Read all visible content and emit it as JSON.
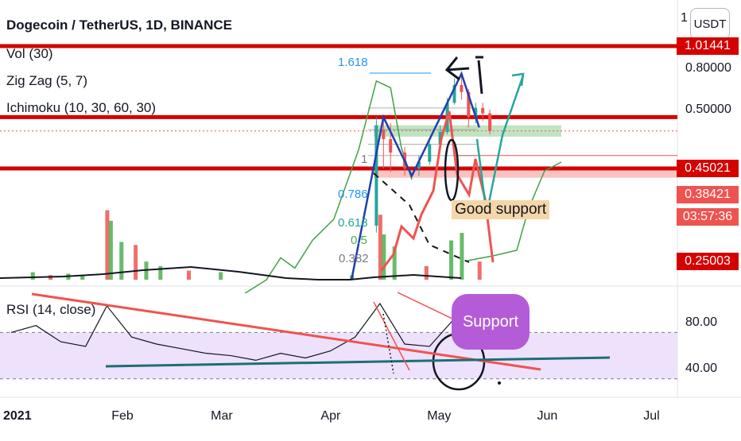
{
  "header": {
    "title": "Dogecoin / TetherUS, 1D, BINANCE",
    "vol_label": "Vol (30)",
    "zigzag_label": "Zig Zag (5, 7)",
    "ichimoku_label": "Ichimoku (10, 30, 60, 30)",
    "rsi_label": "RSI (14, close)",
    "currency": "USDT",
    "axis_top_char": "1"
  },
  "price_tags": {
    "level_top": "1.01441",
    "level_mid": "0.45021",
    "last_price": "0.38421",
    "countdown": "03:57:36",
    "level_low": "0.25003"
  },
  "annotations": {
    "good_support": "Good support",
    "support": "Support",
    "fib_1618": "1.618",
    "fib_1": "1",
    "fib_0786": "0.786",
    "fib_0618": "0.618",
    "fib_05": "0.5",
    "fib_0382": "0.382"
  },
  "colors": {
    "candle_up": "#26a69a",
    "candle_down": "#ef5350",
    "vol_up": "#4caf50",
    "vol_down": "#ef5350",
    "level_line": "#d50000",
    "rsi_band": "#ede1fb",
    "rsi_line": "#131722",
    "ichimoku_lagging": "#43a047",
    "zigzag": "#1e40af",
    "teal_projection": "#26a69a",
    "support_bubble": "#b45cd8",
    "good_support_box": "#f5d6a8"
  },
  "chart_data": [
    {
      "type": "line",
      "title": "Dogecoin / TetherUS, 1D, BINANCE",
      "series_kind": "price",
      "scale": "log",
      "x": [
        "2021-01-01",
        "2021-02-01",
        "2021-03-01",
        "2021-04-01",
        "2021-05-01",
        "2021-06-01",
        "2021-07-01"
      ],
      "x_tick_labels": [
        "2021",
        "Feb",
        "Mar",
        "Apr",
        "May",
        "Jun",
        "Jul"
      ],
      "y_ticks": [
        0.8,
        0.5
      ],
      "y_tick_labels": [
        "0.80000",
        "0.50000"
      ],
      "ylim": [
        0.22,
        1.05
      ],
      "horizontal_levels": [
        1.01441,
        0.45021,
        0.25003
      ],
      "last_price": 0.38421,
      "candles": [
        {
          "date": "2021-04-14",
          "open": 0.13,
          "close": 0.41,
          "high": 0.45,
          "low": 0.12
        },
        {
          "date": "2021-04-16",
          "open": 0.39,
          "close": 0.35,
          "high": 0.45,
          "low": 0.25
        },
        {
          "date": "2021-04-18",
          "open": 0.35,
          "close": 0.3,
          "high": 0.42,
          "low": 0.24
        },
        {
          "date": "2021-04-22",
          "open": 0.3,
          "close": 0.25,
          "high": 0.32,
          "low": 0.23
        },
        {
          "date": "2021-04-26",
          "open": 0.25,
          "close": 0.27,
          "high": 0.29,
          "low": 0.23
        },
        {
          "date": "2021-04-29",
          "open": 0.27,
          "close": 0.33,
          "high": 0.34,
          "low": 0.26
        },
        {
          "date": "2021-05-02",
          "open": 0.33,
          "close": 0.38,
          "high": 0.41,
          "low": 0.32
        },
        {
          "date": "2021-05-04",
          "open": 0.38,
          "close": 0.53,
          "high": 0.56,
          "low": 0.37
        },
        {
          "date": "2021-05-06",
          "open": 0.53,
          "close": 0.65,
          "high": 0.7,
          "low": 0.52
        },
        {
          "date": "2021-05-08",
          "open": 0.65,
          "close": 0.6,
          "high": 0.74,
          "low": 0.55
        },
        {
          "date": "2021-05-10",
          "open": 0.6,
          "close": 0.45,
          "high": 0.62,
          "low": 0.4
        },
        {
          "date": "2021-05-12",
          "open": 0.45,
          "close": 0.5,
          "high": 0.53,
          "low": 0.42
        },
        {
          "date": "2021-05-14",
          "open": 0.5,
          "close": 0.47,
          "high": 0.53,
          "low": 0.43
        },
        {
          "date": "2021-05-16",
          "open": 0.47,
          "close": 0.38421,
          "high": 0.49,
          "low": 0.37
        }
      ],
      "zigzag": [
        {
          "date": "2021-04-07",
          "value": 0.06
        },
        {
          "date": "2021-04-16",
          "value": 0.45
        },
        {
          "date": "2021-04-24",
          "value": 0.23
        },
        {
          "date": "2021-05-08",
          "value": 0.74
        },
        {
          "date": "2021-05-13",
          "value": 0.4
        }
      ],
      "ichimoku_lagging": [
        {
          "date": "2021-03-08",
          "value": 0.06
        },
        {
          "date": "2021-03-14",
          "value": 0.07
        },
        {
          "date": "2021-03-18",
          "value": 0.09
        },
        {
          "date": "2021-03-22",
          "value": 0.08
        },
        {
          "date": "2021-03-27",
          "value": 0.11
        },
        {
          "date": "2021-04-02",
          "value": 0.14
        },
        {
          "date": "2021-04-09",
          "value": 0.31
        },
        {
          "date": "2021-04-14",
          "value": 0.68
        },
        {
          "date": "2021-04-18",
          "value": 0.63
        },
        {
          "date": "2021-04-21",
          "value": 0.32
        },
        {
          "date": "2021-04-24",
          "value": 0.22
        }
      ],
      "fibonacci": [
        {
          "ratio": "1.618",
          "price": 0.95
        },
        {
          "ratio": "1",
          "price": 0.5
        },
        {
          "ratio": "0.786",
          "price": 0.39
        },
        {
          "ratio": "0.618",
          "price": 0.33
        },
        {
          "ratio": "0.5",
          "price": 0.29
        },
        {
          "ratio": "0.382",
          "price": 0.255
        }
      ]
    },
    {
      "type": "bar",
      "title": "Vol (30)",
      "series_kind": "volume",
      "x": [
        "2021-01-07",
        "2021-01-12",
        "2021-01-17",
        "2021-01-21",
        "2021-01-28",
        "2021-01-29",
        "2021-02-01",
        "2021-02-05",
        "2021-02-08",
        "2021-02-12",
        "2021-02-20",
        "2021-03-01",
        "2021-04-07",
        "2021-04-15",
        "2021-04-16",
        "2021-04-19",
        "2021-04-28",
        "2021-05-05",
        "2021-05-08",
        "2021-05-13"
      ],
      "values": [
        0.5,
        0.3,
        0.4,
        0.3,
        4.6,
        3.9,
        2.5,
        2.3,
        1.2,
        0.9,
        0.6,
        0.5,
        0.3,
        4.3,
        3.0,
        2.2,
        0.9,
        2.6,
        3.1,
        1.2
      ],
      "unit": "relative"
    },
    {
      "type": "line",
      "title": "RSI (14, close)",
      "series_kind": "rsi",
      "y_ticks": [
        80,
        40
      ],
      "y_tick_labels": [
        "80.00",
        "40.00"
      ],
      "ylim": [
        25,
        105
      ],
      "band": [
        30,
        70
      ],
      "x": [
        "2021-01-01",
        "2021-01-08",
        "2021-01-15",
        "2021-01-22",
        "2021-01-28",
        "2021-02-04",
        "2021-02-11",
        "2021-02-18",
        "2021-02-25",
        "2021-03-04",
        "2021-03-11",
        "2021-03-18",
        "2021-03-25",
        "2021-04-01",
        "2021-04-08",
        "2021-04-15",
        "2021-04-22",
        "2021-04-29",
        "2021-05-06",
        "2021-05-10",
        "2021-05-16"
      ],
      "values": [
        70,
        76,
        62,
        58,
        93,
        66,
        60,
        56,
        52,
        50,
        46,
        52,
        48,
        54,
        66,
        95,
        60,
        58,
        82,
        70,
        57
      ]
    }
  ]
}
